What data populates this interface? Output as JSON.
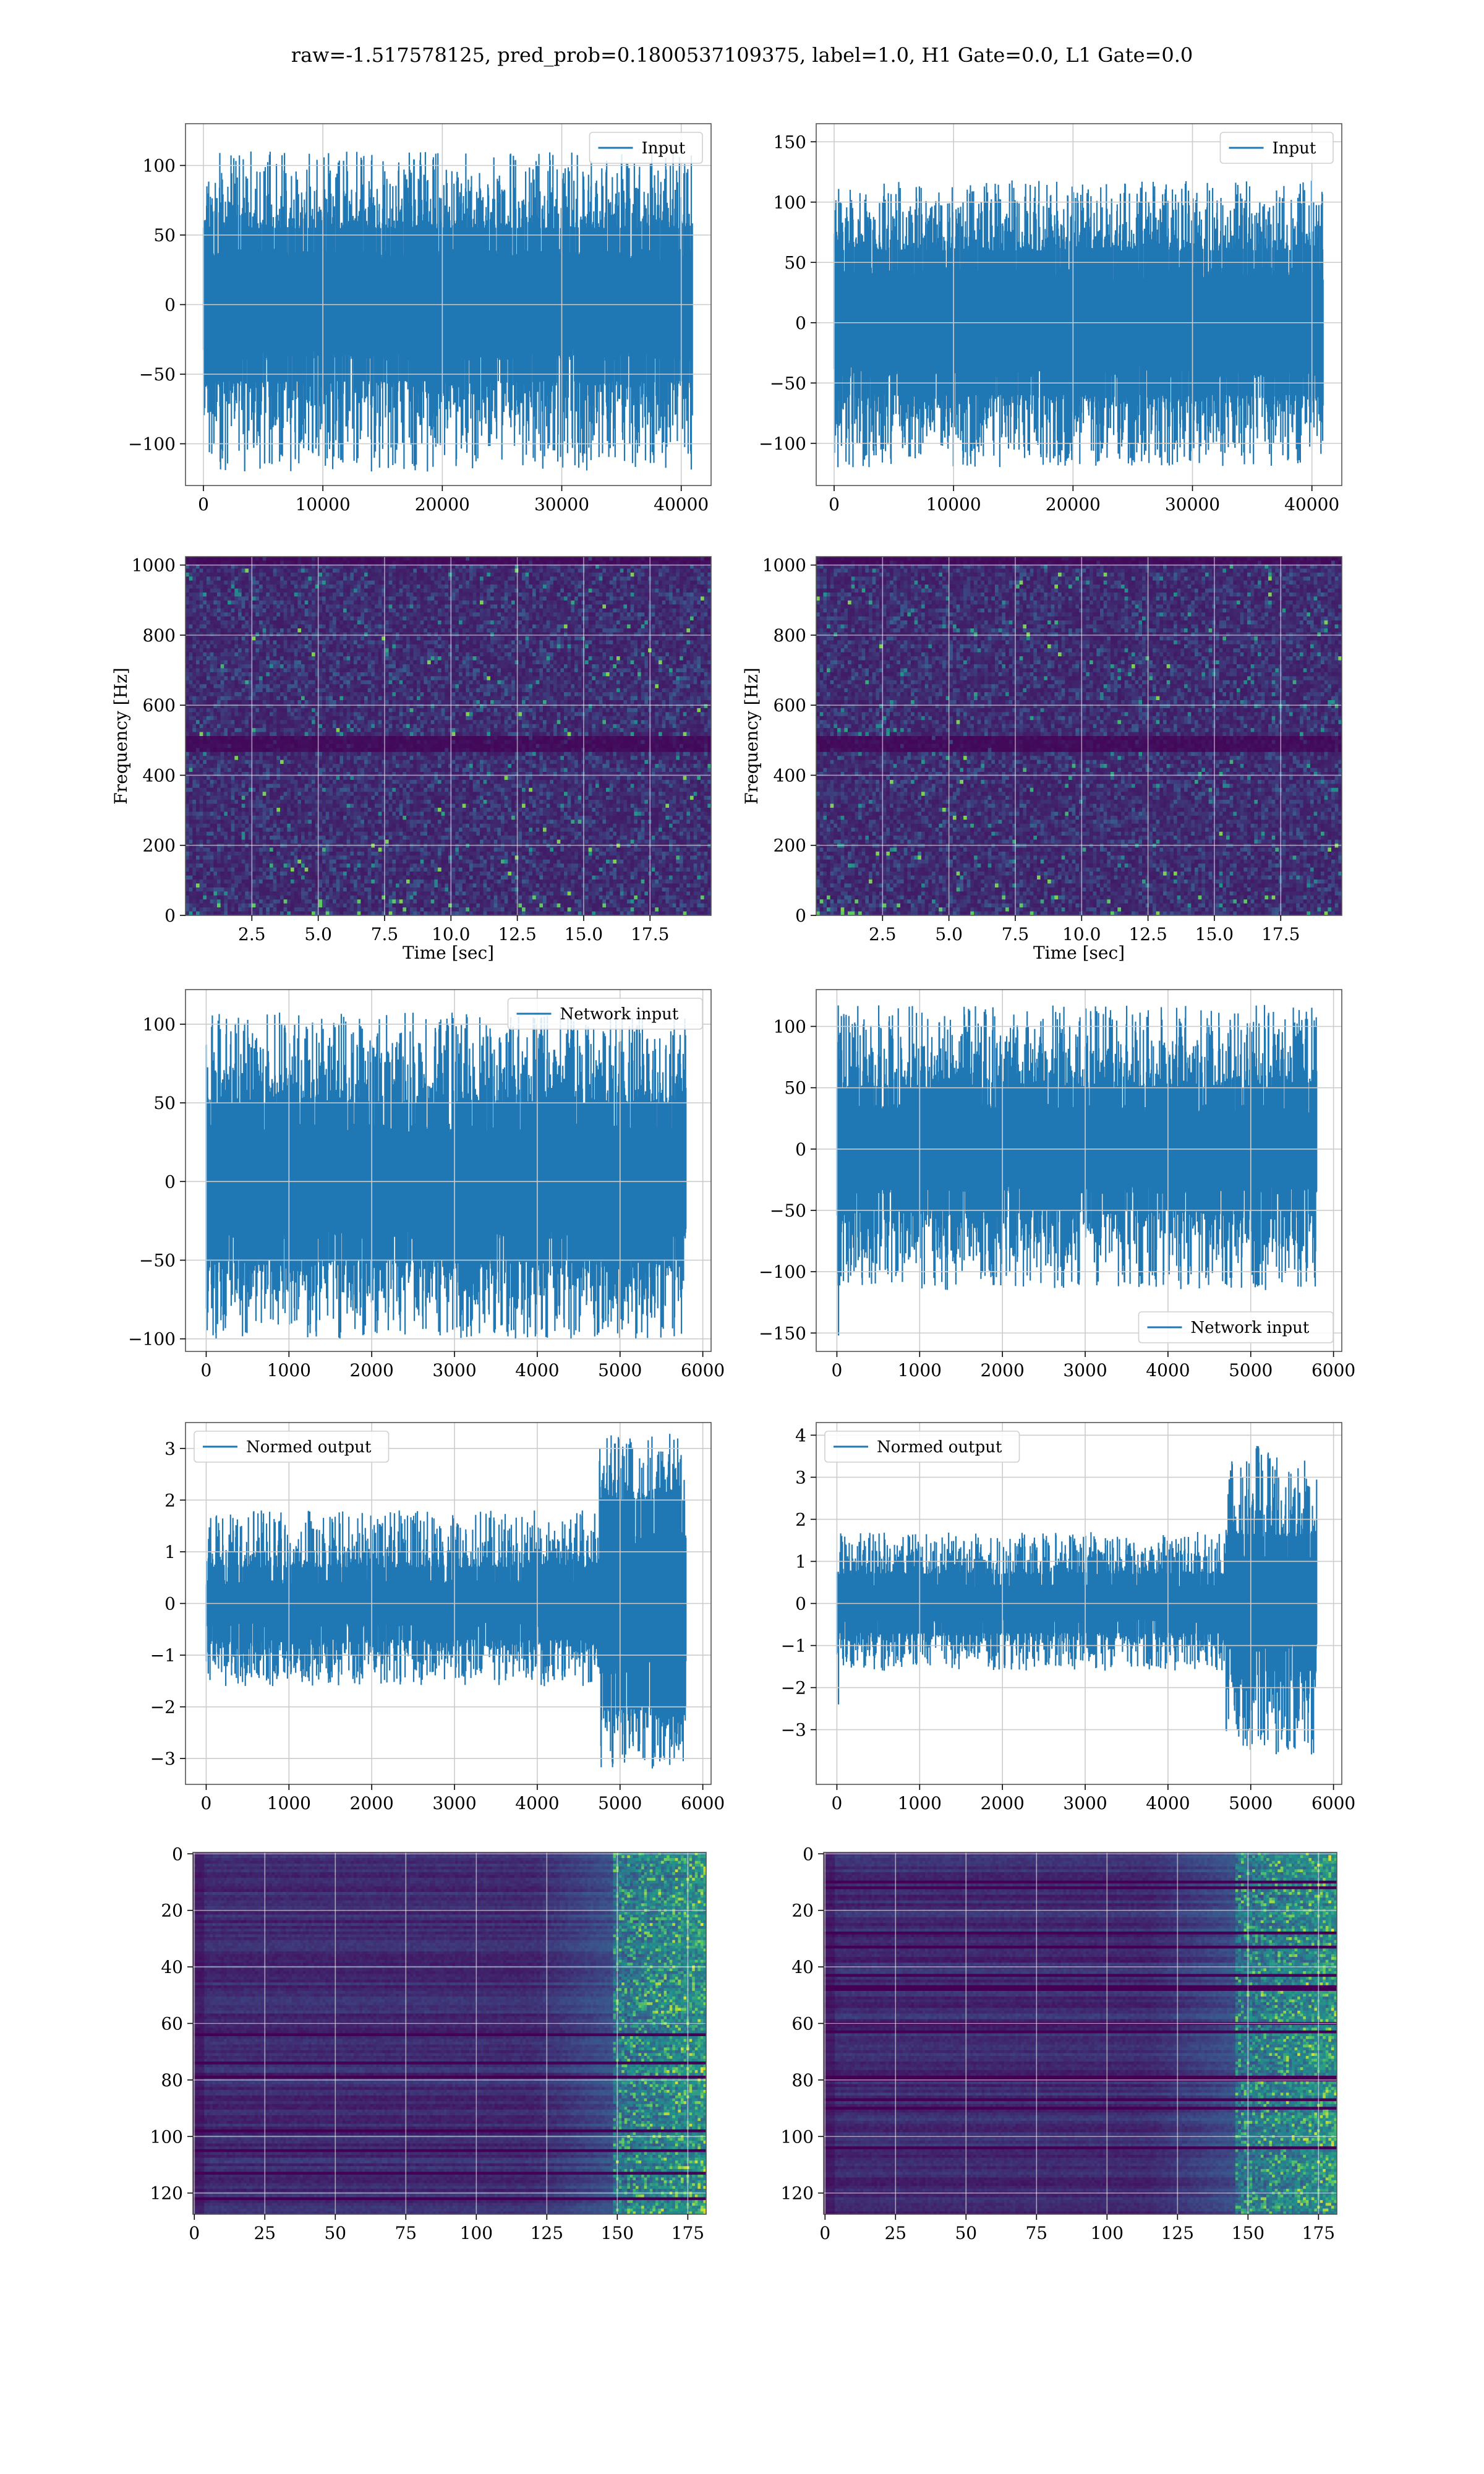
{
  "figure": {
    "suptitle": "raw=-1.517578125, pred_prob=0.1800537109375, label=1.0, H1 Gate=0.0, L1 Gate=0.0"
  },
  "colors": {
    "line": "#1f77b4",
    "grid": "#cccccc",
    "viridis_dark": "#440154",
    "viridis_mid": "#3b528b",
    "viridis_teal": "#21918c",
    "viridis_green": "#5ec962",
    "viridis_yellow": "#fde725"
  },
  "chart_data": [
    {
      "id": "h1-input",
      "type": "line",
      "legend": "Input",
      "legend_loc": "upper right",
      "xlim": [
        -1500,
        42500
      ],
      "ylim": [
        -130,
        130
      ],
      "xticks": [
        0,
        10000,
        20000,
        30000,
        40000
      ],
      "xtick_labels": [
        "0",
        "10000",
        "20000",
        "30000",
        "40000"
      ],
      "yticks": [
        -100,
        -50,
        0,
        50,
        100
      ],
      "ytick_labels": [
        "−100",
        "−50",
        "0",
        "50",
        "100"
      ],
      "signal": {
        "n": 40960,
        "x_end": 40960,
        "band": [
          -35,
          35
        ],
        "spike_max": [
          55,
          110
        ],
        "spike_min": [
          -55,
          -120
        ],
        "seed": 11
      }
    },
    {
      "id": "l1-input",
      "type": "line",
      "legend": "Input",
      "legend_loc": "upper right",
      "xlim": [
        -1500,
        42500
      ],
      "ylim": [
        -135,
        165
      ],
      "xticks": [
        0,
        10000,
        20000,
        30000,
        40000
      ],
      "xtick_labels": [
        "0",
        "10000",
        "20000",
        "30000",
        "40000"
      ],
      "yticks": [
        -100,
        -50,
        0,
        50,
        100,
        150
      ],
      "ytick_labels": [
        "−100",
        "−50",
        "0",
        "50",
        "100",
        "150"
      ],
      "signal": {
        "n": 40960,
        "x_end": 40960,
        "band": [
          -40,
          40
        ],
        "spike_max": [
          60,
          118
        ],
        "spike_min": [
          -60,
          -120
        ],
        "seed": 23
      }
    },
    {
      "id": "h1-spectrogram",
      "type": "heatmap",
      "xlim": [
        0,
        19.8
      ],
      "ylim": [
        0,
        1024
      ],
      "xticks": [
        2.5,
        5.0,
        7.5,
        10.0,
        12.5,
        15.0,
        17.5
      ],
      "xtick_labels": [
        "2.5",
        "5.0",
        "7.5",
        "10.0",
        "12.5",
        "15.0",
        "17.5"
      ],
      "yticks": [
        0,
        200,
        400,
        600,
        800,
        1000
      ],
      "ytick_labels": [
        "0",
        "200",
        "400",
        "600",
        "800",
        "1000"
      ],
      "xlabel": "Time [sec]",
      "ylabel": "Frequency [Hz]",
      "grid": {
        "cols": 150,
        "rows": 90,
        "seed": 5,
        "dark_bands": [
          [
            470,
            510
          ],
          [
            1005,
            1020
          ]
        ],
        "bright_bottom": [
          40,
          60
        ]
      }
    },
    {
      "id": "l1-spectrogram",
      "type": "heatmap",
      "xlim": [
        0,
        19.8
      ],
      "ylim": [
        0,
        1024
      ],
      "xticks": [
        2.5,
        5.0,
        7.5,
        10.0,
        12.5,
        15.0,
        17.5
      ],
      "xtick_labels": [
        "2.5",
        "5.0",
        "7.5",
        "10.0",
        "12.5",
        "15.0",
        "17.5"
      ],
      "yticks": [
        0,
        200,
        400,
        600,
        800,
        1000
      ],
      "ytick_labels": [
        "0",
        "200",
        "400",
        "600",
        "800",
        "1000"
      ],
      "xlabel": "Time [sec]",
      "ylabel": "Frequency [Hz]",
      "grid": {
        "cols": 150,
        "rows": 90,
        "seed": 9,
        "dark_bands": [
          [
            470,
            510
          ],
          [
            1005,
            1020
          ]
        ],
        "bright_bottom": [
          40,
          60
        ]
      }
    },
    {
      "id": "h1-network-input",
      "type": "line",
      "legend": "Network input",
      "legend_loc": "upper right",
      "xlim": [
        -250,
        6100
      ],
      "ylim": [
        -108,
        122
      ],
      "xticks": [
        0,
        1000,
        2000,
        3000,
        4000,
        5000,
        6000
      ],
      "xtick_labels": [
        "0",
        "1000",
        "2000",
        "3000",
        "4000",
        "5000",
        "6000"
      ],
      "yticks": [
        -100,
        -50,
        0,
        50,
        100
      ],
      "ytick_labels": [
        "−100",
        "−50",
        "0",
        "50",
        "100"
      ],
      "signal": {
        "n": 5800,
        "x_end": 5800,
        "band": [
          -32,
          32
        ],
        "spike_max": [
          50,
          108
        ],
        "spike_min": [
          -50,
          -100
        ],
        "seed": 31
      }
    },
    {
      "id": "l1-network-input",
      "type": "line",
      "legend": "Network input",
      "legend_loc": "lower right",
      "xlim": [
        -250,
        6100
      ],
      "ylim": [
        -165,
        130
      ],
      "xticks": [
        0,
        1000,
        2000,
        3000,
        4000,
        5000,
        6000
      ],
      "xtick_labels": [
        "0",
        "1000",
        "2000",
        "3000",
        "4000",
        "5000",
        "6000"
      ],
      "yticks": [
        -150,
        -100,
        -50,
        0,
        50,
        100
      ],
      "ytick_labels": [
        "−150",
        "−100",
        "−50",
        "0",
        "50",
        "100"
      ],
      "signal": {
        "n": 5800,
        "x_end": 5800,
        "band": [
          -32,
          32
        ],
        "spike_max": [
          50,
          118
        ],
        "spike_min": [
          -50,
          -115
        ],
        "seed": 37,
        "extra_min": [
          [
            20,
            -152
          ]
        ]
      }
    },
    {
      "id": "h1-normed-output",
      "type": "line",
      "legend": "Normed output",
      "legend_loc": "upper left",
      "xlim": [
        -250,
        6100
      ],
      "ylim": [
        -3.5,
        3.5
      ],
      "xticks": [
        0,
        1000,
        2000,
        3000,
        4000,
        5000,
        6000
      ],
      "xtick_labels": [
        "0",
        "1000",
        "2000",
        "3000",
        "4000",
        "5000",
        "6000"
      ],
      "yticks": [
        -3,
        -2,
        -1,
        0,
        1,
        2,
        3
      ],
      "ytick_labels": [
        "−3",
        "−2",
        "−1",
        "0",
        "1",
        "2",
        "3"
      ],
      "signal": {
        "n": 5800,
        "x_end": 5800,
        "band": [
          -0.4,
          0.4
        ],
        "spike_max": [
          0.7,
          1.8
        ],
        "spike_min": [
          -0.7,
          -1.6
        ],
        "seed": 41,
        "burst_start": 4750,
        "burst_band": [
          -1.2,
          1.2
        ],
        "burst_max": [
          2.0,
          3.3
        ],
        "burst_min": [
          -2.0,
          -3.2
        ]
      }
    },
    {
      "id": "l1-normed-output",
      "type": "line",
      "legend": "Normed output",
      "legend_loc": "upper left",
      "xlim": [
        -250,
        6100
      ],
      "ylim": [
        -4.3,
        4.3
      ],
      "xticks": [
        0,
        1000,
        2000,
        3000,
        4000,
        5000,
        6000
      ],
      "xtick_labels": [
        "0",
        "1000",
        "2000",
        "3000",
        "4000",
        "5000",
        "6000"
      ],
      "yticks": [
        -3,
        -2,
        -1,
        0,
        1,
        2,
        3,
        4
      ],
      "ytick_labels": [
        "−3",
        "−2",
        "−1",
        "0",
        "1",
        "2",
        "3",
        "4"
      ],
      "signal": {
        "n": 5800,
        "x_end": 5800,
        "band": [
          -0.4,
          0.4
        ],
        "spike_max": [
          0.7,
          1.7
        ],
        "spike_min": [
          -0.7,
          -1.6
        ],
        "seed": 43,
        "extra_min": [
          [
            20,
            -2.4
          ]
        ],
        "burst_start": 4700,
        "burst_band": [
          -1.0,
          1.0
        ],
        "burst_max": [
          1.6,
          3.8
        ],
        "burst_min": [
          -1.6,
          -3.6
        ]
      }
    },
    {
      "id": "h1-feature-map",
      "type": "heatmap",
      "xlim": [
        -0.5,
        181.5
      ],
      "ylim": [
        127.5,
        -0.5
      ],
      "xticks": [
        0,
        25,
        50,
        75,
        100,
        125,
        150,
        175
      ],
      "xtick_labels": [
        "0",
        "25",
        "50",
        "75",
        "100",
        "125",
        "150",
        "175"
      ],
      "yticks": [
        0,
        20,
        40,
        60,
        80,
        100,
        120
      ],
      "ytick_labels": [
        "0",
        "20",
        "40",
        "60",
        "80",
        "100",
        "120"
      ],
      "grid": {
        "cols": 182,
        "rows": 128,
        "seed": 17,
        "ramp_start": 120,
        "ramp_strong": 148,
        "banded": true
      }
    },
    {
      "id": "l1-feature-map",
      "type": "heatmap",
      "xlim": [
        -0.5,
        181.5
      ],
      "ylim": [
        127.5,
        -0.5
      ],
      "xticks": [
        0,
        25,
        50,
        75,
        100,
        125,
        150,
        175
      ],
      "xtick_labels": [
        "0",
        "25",
        "50",
        "75",
        "100",
        "125",
        "150",
        "175"
      ],
      "yticks": [
        0,
        20,
        40,
        60,
        80,
        100,
        120
      ],
      "ytick_labels": [
        "0",
        "20",
        "40",
        "60",
        "80",
        "100",
        "120"
      ],
      "grid": {
        "cols": 182,
        "rows": 128,
        "seed": 29,
        "ramp_start": 115,
        "ramp_strong": 145,
        "banded": true
      }
    }
  ]
}
